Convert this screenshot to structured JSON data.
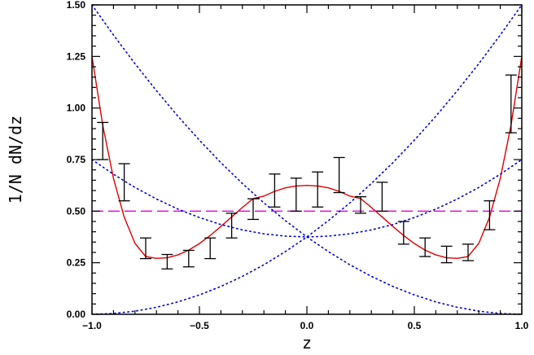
{
  "chart_data": {
    "type": "scatter",
    "xlabel": "z",
    "ylabel": "1/N dN/dz",
    "xlim": [
      -1.0,
      1.0
    ],
    "ylim": [
      0.0,
      1.5
    ],
    "x_ticks": [
      -1.0,
      -0.5,
      0.0,
      0.5,
      1.0
    ],
    "x_tick_labels": [
      "−1.0",
      "−0.5",
      "0.0",
      "0.5",
      "1.0"
    ],
    "y_ticks": [
      0.0,
      0.25,
      0.5,
      0.75,
      1.0,
      1.25,
      1.5
    ],
    "y_tick_labels": [
      "0.00",
      "0.25",
      "0.50",
      "0.75",
      "1.00",
      "1.25",
      "1.50"
    ],
    "grid": false,
    "legend": "none",
    "series": [
      {
        "kind": "errorbar",
        "color": "#000000",
        "points": [
          {
            "x": -0.95,
            "low": 0.75,
            "high": 0.93
          },
          {
            "x": -0.85,
            "low": 0.55,
            "high": 0.73
          },
          {
            "x": -0.75,
            "low": 0.27,
            "high": 0.37
          },
          {
            "x": -0.65,
            "low": 0.22,
            "high": 0.29
          },
          {
            "x": -0.55,
            "low": 0.23,
            "high": 0.31
          },
          {
            "x": -0.45,
            "low": 0.27,
            "high": 0.37
          },
          {
            "x": -0.35,
            "low": 0.37,
            "high": 0.49
          },
          {
            "x": -0.25,
            "low": 0.46,
            "high": 0.56
          },
          {
            "x": -0.15,
            "low": 0.52,
            "high": 0.68
          },
          {
            "x": -0.05,
            "low": 0.5,
            "high": 0.66
          },
          {
            "x": 0.05,
            "low": 0.52,
            "high": 0.69
          },
          {
            "x": 0.15,
            "low": 0.59,
            "high": 0.76
          },
          {
            "x": 0.25,
            "low": 0.49,
            "high": 0.57
          },
          {
            "x": 0.35,
            "low": 0.5,
            "high": 0.64
          },
          {
            "x": 0.45,
            "low": 0.34,
            "high": 0.45
          },
          {
            "x": 0.55,
            "low": 0.28,
            "high": 0.37
          },
          {
            "x": 0.65,
            "low": 0.25,
            "high": 0.33
          },
          {
            "x": 0.75,
            "low": 0.26,
            "high": 0.34
          },
          {
            "x": 0.85,
            "low": 0.41,
            "high": 0.55
          },
          {
            "x": 0.95,
            "low": 0.88,
            "high": 1.16
          }
        ]
      },
      {
        "kind": "line",
        "style": "solid",
        "color": "#e00000",
        "x": [
          -1.0,
          -0.95,
          -0.9,
          -0.85,
          -0.8,
          -0.75,
          -0.7,
          -0.65,
          -0.6,
          -0.55,
          -0.5,
          -0.45,
          -0.4,
          -0.35,
          -0.3,
          -0.25,
          -0.2,
          -0.15,
          -0.1,
          -0.05,
          0.0,
          0.05,
          0.1,
          0.15,
          0.2,
          0.25,
          0.3,
          0.35,
          0.4,
          0.45,
          0.5,
          0.55,
          0.6,
          0.65,
          0.7,
          0.75,
          0.8,
          0.85,
          0.9,
          0.95,
          1.0
        ],
        "y": [
          1.25,
          0.917,
          0.659,
          0.471,
          0.344,
          0.28,
          0.271,
          0.274,
          0.288,
          0.311,
          0.343,
          0.382,
          0.426,
          0.472,
          0.518,
          0.561,
          0.573,
          0.596,
          0.613,
          0.622,
          0.625,
          0.622,
          0.613,
          0.596,
          0.573,
          0.561,
          0.518,
          0.472,
          0.426,
          0.382,
          0.343,
          0.311,
          0.288,
          0.274,
          0.271,
          0.28,
          0.344,
          0.471,
          0.659,
          0.917,
          1.25
        ]
      },
      {
        "kind": "line",
        "style": "dashed",
        "color": "#e000e0",
        "x": [
          -1.0,
          1.0
        ],
        "y": [
          0.5,
          0.5
        ]
      },
      {
        "kind": "line",
        "style": "dotted",
        "color": "#0000dd",
        "x": [
          -1.0,
          -0.9,
          -0.8,
          -0.7,
          -0.6,
          -0.5,
          -0.4,
          -0.3,
          -0.2,
          -0.1,
          0.0,
          0.1,
          0.2,
          0.3,
          0.4,
          0.5,
          0.6,
          0.7,
          0.8,
          0.9,
          1.0
        ],
        "y": [
          1.5,
          1.354,
          1.215,
          1.084,
          0.96,
          0.844,
          0.735,
          0.634,
          0.54,
          0.454,
          0.375,
          0.304,
          0.24,
          0.184,
          0.135,
          0.094,
          0.06,
          0.034,
          0.015,
          0.004,
          0.0
        ]
      },
      {
        "kind": "line",
        "style": "dotted",
        "color": "#0000dd",
        "x": [
          -1.0,
          -0.9,
          -0.8,
          -0.7,
          -0.6,
          -0.5,
          -0.4,
          -0.3,
          -0.2,
          -0.1,
          0.0,
          0.1,
          0.2,
          0.3,
          0.4,
          0.5,
          0.6,
          0.7,
          0.8,
          0.9,
          1.0
        ],
        "y": [
          0.0,
          0.004,
          0.015,
          0.034,
          0.06,
          0.094,
          0.135,
          0.184,
          0.24,
          0.304,
          0.375,
          0.454,
          0.54,
          0.634,
          0.735,
          0.844,
          0.96,
          1.084,
          1.215,
          1.354,
          1.5
        ]
      },
      {
        "kind": "line",
        "style": "dotted",
        "color": "#0000dd",
        "x": [
          -1.0,
          -0.9,
          -0.8,
          -0.7,
          -0.6,
          -0.5,
          -0.4,
          -0.3,
          -0.2,
          -0.1,
          0.0,
          0.1,
          0.2,
          0.3,
          0.4,
          0.5,
          0.6,
          0.7,
          0.8,
          0.9,
          1.0
        ],
        "y": [
          0.75,
          0.679,
          0.615,
          0.559,
          0.51,
          0.469,
          0.435,
          0.409,
          0.39,
          0.379,
          0.375,
          0.379,
          0.39,
          0.409,
          0.435,
          0.469,
          0.51,
          0.559,
          0.615,
          0.679,
          0.75
        ]
      }
    ]
  }
}
